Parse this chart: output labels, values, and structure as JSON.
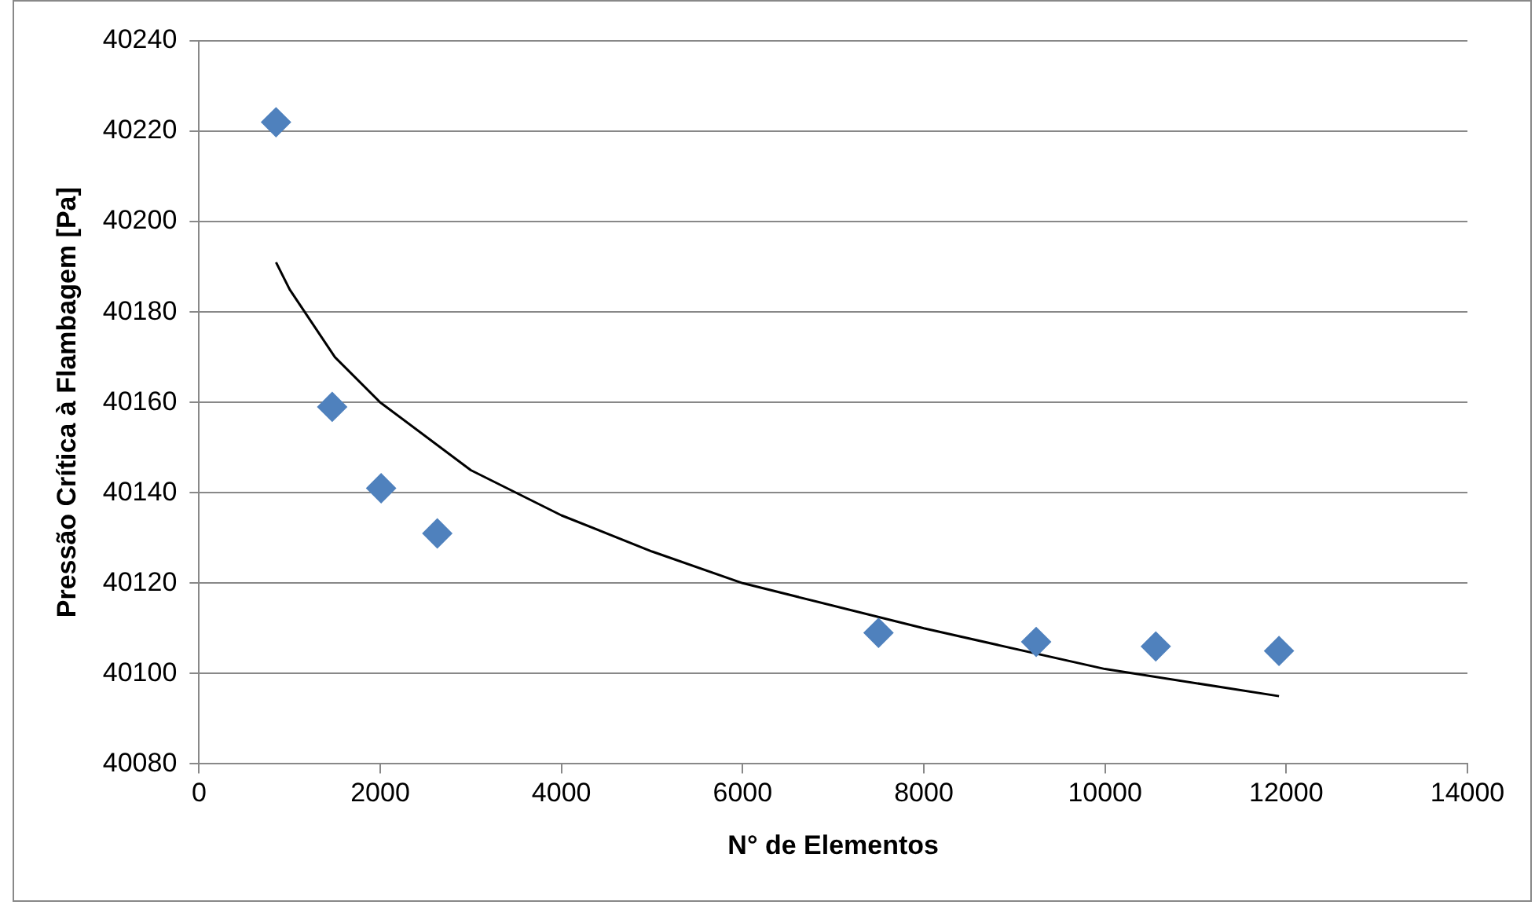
{
  "chart_data": {
    "type": "scatter",
    "xlabel": "N° de Elementos",
    "ylabel": "Pressão Crítica à Flambagem [Pa]",
    "xlim": [
      0,
      14000
    ],
    "xticks": [
      0,
      2000,
      4000,
      6000,
      8000,
      10000,
      12000,
      14000
    ],
    "ylim": [
      40080,
      40240
    ],
    "yticks": [
      40080,
      40100,
      40120,
      40140,
      40160,
      40180,
      40200,
      40220,
      40240
    ],
    "grid": "y",
    "legend": false,
    "marker": "diamond",
    "series": [
      {
        "color": "#4f81bd",
        "x": [
          850,
          1470,
          2010,
          2630,
          7500,
          9240,
          10560,
          11920
        ],
        "values": [
          40222,
          40159,
          40141,
          40131,
          40109,
          40107,
          40106,
          40105
        ]
      },
      {
        "type": "line",
        "color": "#000000",
        "line_style": "solid",
        "marker": "none",
        "x": [
          850,
          1000,
          1500,
          2000,
          3000,
          4000,
          5000,
          6000,
          8000,
          10000,
          11920
        ],
        "values": [
          40191,
          40185,
          40170,
          40160,
          40145,
          40135,
          40127,
          40120,
          40110,
          40101,
          40095
        ]
      }
    ]
  }
}
